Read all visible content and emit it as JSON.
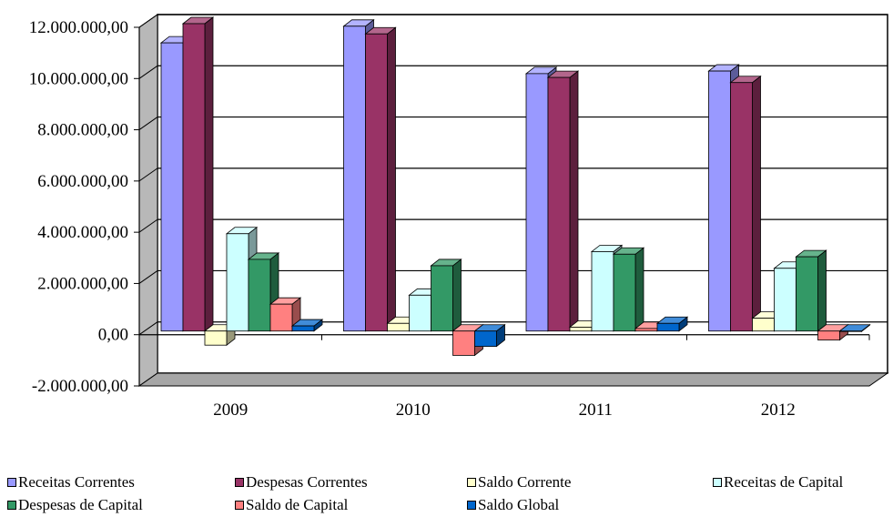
{
  "chart_data": {
    "type": "bar",
    "categories": [
      "2009",
      "2010",
      "2011",
      "2012"
    ],
    "series": [
      {
        "name": "Receitas Correntes",
        "color": "#9999FF",
        "values": [
          11250000,
          11900000,
          10050000,
          10150000
        ]
      },
      {
        "name": "Despesas Correntes",
        "color": "#993366",
        "values": [
          12000000,
          11600000,
          9900000,
          9700000
        ]
      },
      {
        "name": "Saldo Corrente",
        "color": "#FFFFCC",
        "values": [
          -550000,
          300000,
          150000,
          500000
        ]
      },
      {
        "name": "Receitas de Capital",
        "color": "#CCFFFF",
        "values": [
          3800000,
          1400000,
          3100000,
          2450000
        ]
      },
      {
        "name": "Despesas de Capital",
        "color": "#339966",
        "values": [
          2800000,
          2550000,
          3000000,
          2900000
        ]
      },
      {
        "name": "Saldo de Capital",
        "color": "#FF8080",
        "values": [
          1050000,
          -950000,
          100000,
          -350000
        ]
      },
      {
        "name": "Saldo Global",
        "color": "#0066CC",
        "values": [
          200000,
          -600000,
          300000,
          0
        ]
      }
    ],
    "y_ticks": [
      "12.000.000,00",
      "10.000.000,00",
      "8.000.000,00",
      "6.000.000,00",
      "4.000.000,00",
      "2.000.000,00",
      "0,00",
      "-2.000.000,00"
    ],
    "ylim": [
      -2000000,
      12000000
    ],
    "grid": true,
    "legend_position": "bottom",
    "style": "3d-column"
  }
}
